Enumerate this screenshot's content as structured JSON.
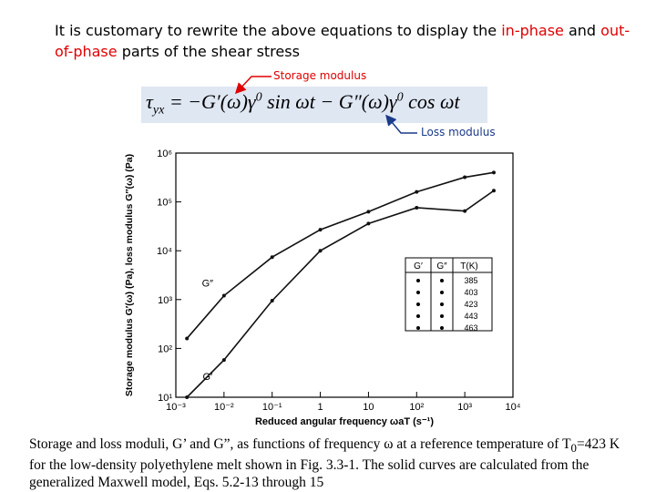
{
  "slide": {
    "title": [
      "It is customary to rewrite the above equations to display the ",
      "in-phase",
      " and ",
      "out-of-phase",
      " parts of the shear stress"
    ],
    "storage_label": "Storage modulus",
    "loss_label": "Loss modulus",
    "equation": [
      "τ",
      "yx",
      " = −G′(ω)γ",
      "0",
      " sin ωt − G″(ω)γ",
      "0",
      " cos ωt"
    ],
    "caption": [
      "Storage and loss moduli, G’ and G”, as functions of frequency ω at a reference temperature of T",
      "0",
      "=423 K for the low-density polyethylene melt shown in Fig. 3.3-1. The solid curves are calculated from the generalized Maxwell model, Eqs. 5.2-13 through 15"
    ]
  },
  "chart_data": {
    "type": "line",
    "xlabel": "Reduced angular frequency ωaT (s⁻¹)",
    "ylabel": "Storage modulus G′(ω) (Pa), loss modulus G″(ω) (Pa)",
    "log_x": true,
    "log_y": true,
    "xlim": [
      0.001,
      10000
    ],
    "ylim": [
      10,
      1000000
    ],
    "xticks": [
      {
        "value": 0.001,
        "label": "10⁻³"
      },
      {
        "value": 0.01,
        "label": "10⁻²"
      },
      {
        "value": 0.1,
        "label": "10⁻¹"
      },
      {
        "value": 1,
        "label": "1"
      },
      {
        "value": 10,
        "label": "10"
      },
      {
        "value": 100,
        "label": "10²"
      },
      {
        "value": 1000,
        "label": "10³"
      },
      {
        "value": 10000,
        "label": "10⁴"
      }
    ],
    "yticks": [
      {
        "value": 10,
        "label": "10¹"
      },
      {
        "value": 100,
        "label": "10²"
      },
      {
        "value": 1000,
        "label": "10³"
      },
      {
        "value": 10000,
        "label": "10⁴"
      },
      {
        "value": 100000,
        "label": "10⁵"
      },
      {
        "value": 1000000,
        "label": "10⁶"
      }
    ],
    "x": [
      0.0017,
      0.01,
      0.1,
      1,
      10,
      100,
      1000,
      4000
    ],
    "series": [
      {
        "name": "G″",
        "color": "#111111",
        "values": [
          160,
          1200,
          7400,
          27000,
          63000,
          160000,
          320000,
          400000
        ]
      },
      {
        "name": "G′",
        "color": "#111111",
        "values": [
          10,
          58,
          950,
          10000,
          36000,
          76000,
          65000,
          170000
        ]
      }
    ],
    "legend_table": {
      "headers": [
        "G′",
        "G″",
        "T(K)"
      ],
      "temperatures": [
        "385",
        "403",
        "423",
        "443",
        "463"
      ]
    }
  }
}
